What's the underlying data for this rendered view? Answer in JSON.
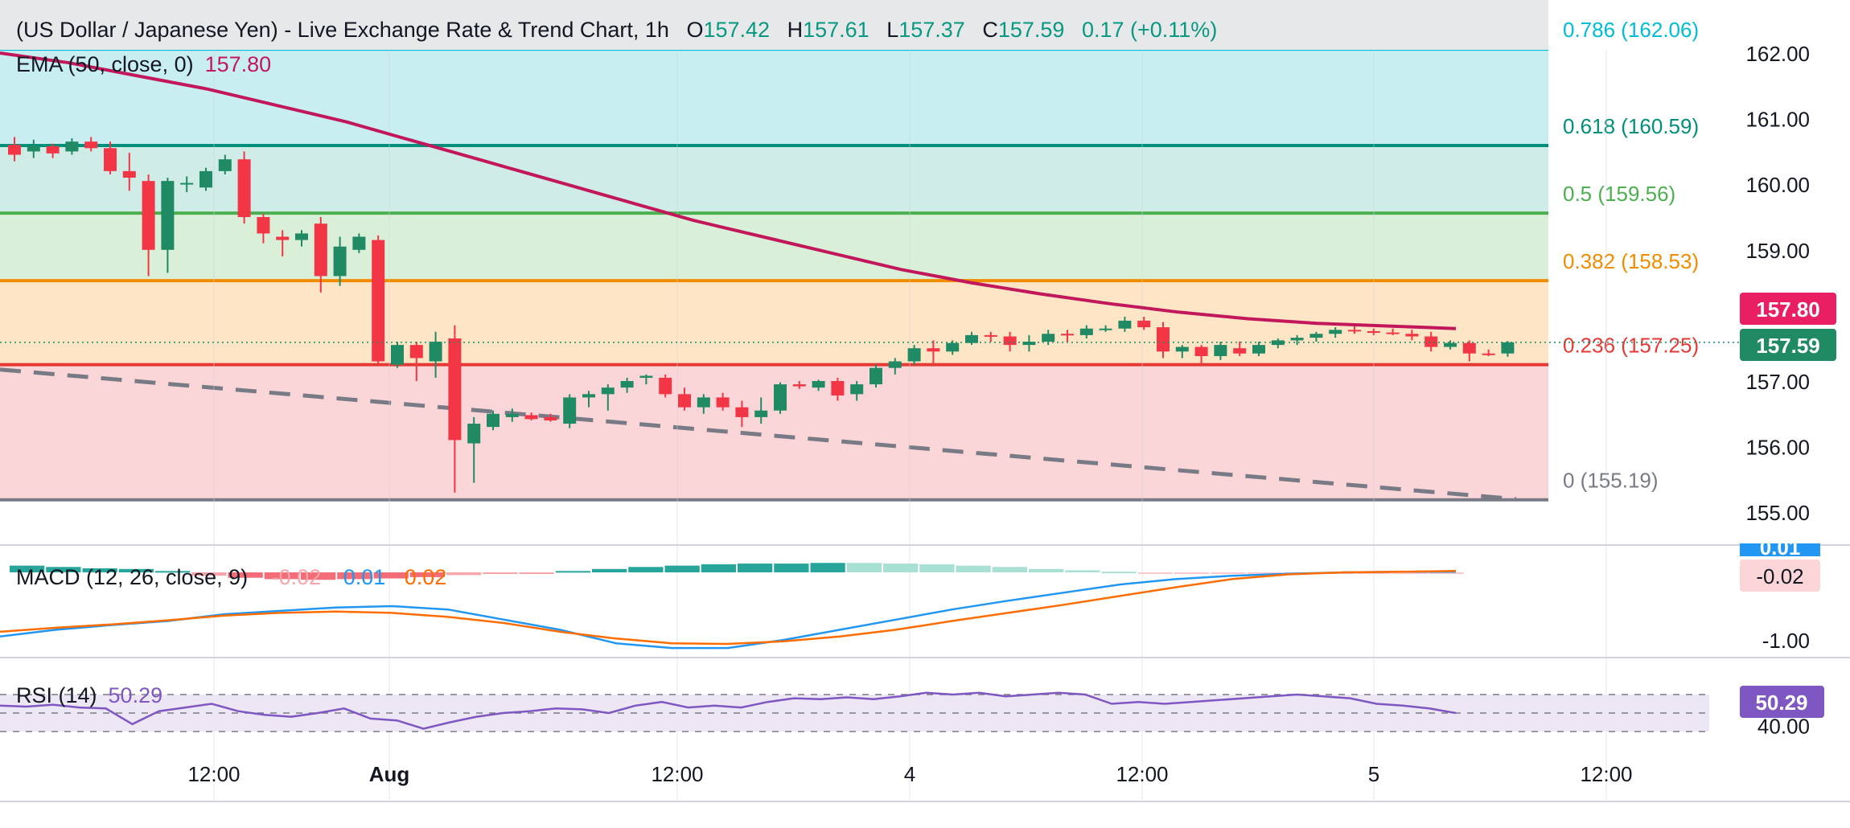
{
  "header": {
    "title": "(US Dollar / Japanese Yen) - Live Exchange Rate & Trend Chart, 1h",
    "o_label": "O",
    "o_value": "157.42",
    "h_label": "H",
    "h_value": "157.61",
    "l_label": "L",
    "l_value": "157.37",
    "c_label": "C",
    "c_value": "157.59",
    "change": "0.17 (+0.11%)"
  },
  "ema": {
    "label": "EMA (50, close, 0)",
    "value": "157.80"
  },
  "price_tags": {
    "ema": "157.80",
    "close": "157.59"
  },
  "fib_levels": [
    {
      "ratio": 0.786,
      "label": "0.786 (162.06)",
      "price": 162.06,
      "color": "#00bcd4",
      "fill": "#c8eef2"
    },
    {
      "ratio": 0.618,
      "label": "0.618 (160.59)",
      "price": 160.59,
      "color": "#008f7a",
      "fill": "#cfece6"
    },
    {
      "ratio": 0.5,
      "label": "0.5 (159.56)",
      "price": 159.56,
      "color": "#4caf50",
      "fill": "#d9efd7"
    },
    {
      "ratio": 0.382,
      "label": "0.382 (158.53)",
      "price": 158.53,
      "color": "#f08c00",
      "fill": "#fde5c6"
    },
    {
      "ratio": 0.236,
      "label": "0.236 (157.25)",
      "price": 157.25,
      "color": "#e53935",
      "fill": "#fbd6d8"
    },
    {
      "ratio": 0,
      "label": "0 (155.19)",
      "price": 155.19,
      "color": "#787b86",
      "fill": "#fbd6d8"
    }
  ],
  "macd": {
    "label": "MACD (12, 26, close, 9)",
    "hist": "-0.02",
    "macd": "0.01",
    "signal": "0.02",
    "tag_top": "0.01",
    "tag": "-0.02"
  },
  "rsi": {
    "label": "RSI (14)",
    "value": "50.29",
    "tag": "50.29"
  },
  "colors": {
    "up": "#26a69a",
    "up_body": "#1f8a63",
    "down": "#f23645",
    "ema": "#c2185b",
    "macd": "#2196f3",
    "signal": "#ff6d00",
    "rsi": "#7e57c2",
    "rsi_band": "#ece6f5",
    "trend": "#787b86"
  },
  "chart_data": [
    {
      "type": "candlestick",
      "title": "(US Dollar / Japanese Yen) - Live Exchange Rate & Trend Chart, 1h",
      "x_tick_labels": [
        "12:00",
        "Aug",
        "12:00",
        "4",
        "12:00",
        "5",
        "12:00"
      ],
      "y_ticks": [
        162.0,
        161.0,
        160.0,
        159.0,
        158.0,
        157.0,
        156.0,
        155.0
      ],
      "ylim": [
        154.8,
        162.6
      ],
      "ohlc": [
        [
          160.6,
          160.72,
          160.35,
          160.45
        ],
        [
          160.5,
          160.68,
          160.4,
          160.58
        ],
        [
          160.58,
          160.62,
          160.4,
          160.47
        ],
        [
          160.5,
          160.7,
          160.45,
          160.65
        ],
        [
          160.65,
          160.72,
          160.5,
          160.55
        ],
        [
          160.55,
          160.65,
          160.15,
          160.2
        ],
        [
          160.2,
          160.48,
          159.9,
          160.1
        ],
        [
          160.05,
          160.15,
          158.6,
          159.0
        ],
        [
          159.0,
          160.1,
          158.65,
          160.05
        ],
        [
          160.0,
          160.12,
          159.88,
          160.02
        ],
        [
          159.95,
          160.25,
          159.9,
          160.2
        ],
        [
          160.2,
          160.45,
          160.15,
          160.38
        ],
        [
          160.38,
          160.5,
          159.4,
          159.5
        ],
        [
          159.5,
          159.55,
          159.1,
          159.25
        ],
        [
          159.2,
          159.3,
          158.9,
          159.15
        ],
        [
          159.15,
          159.3,
          159.05,
          159.25
        ],
        [
          159.4,
          159.5,
          158.35,
          158.6
        ],
        [
          158.6,
          159.2,
          158.45,
          159.05
        ],
        [
          159.0,
          159.25,
          158.95,
          159.2
        ],
        [
          159.15,
          159.22,
          157.25,
          157.3
        ],
        [
          157.25,
          157.6,
          157.2,
          157.55
        ],
        [
          157.55,
          157.6,
          157.0,
          157.35
        ],
        [
          157.3,
          157.75,
          157.05,
          157.6
        ],
        [
          157.65,
          157.85,
          155.3,
          156.1
        ],
        [
          156.05,
          156.45,
          155.45,
          156.35
        ],
        [
          156.3,
          156.55,
          156.25,
          156.5
        ],
        [
          156.45,
          156.58,
          156.38,
          156.5
        ],
        [
          156.48,
          156.52,
          156.4,
          156.42
        ],
        [
          156.45,
          156.5,
          156.38,
          156.4
        ],
        [
          156.35,
          156.8,
          156.28,
          156.75
        ],
        [
          156.75,
          156.85,
          156.6,
          156.8
        ],
        [
          156.8,
          156.95,
          156.55,
          156.9
        ],
        [
          156.9,
          157.05,
          156.82,
          157.0
        ],
        [
          157.05,
          157.1,
          156.95,
          157.08
        ],
        [
          157.05,
          157.1,
          156.75,
          156.8
        ],
        [
          156.8,
          156.9,
          156.55,
          156.6
        ],
        [
          156.6,
          156.8,
          156.5,
          156.75
        ],
        [
          156.75,
          156.82,
          156.55,
          156.6
        ],
        [
          156.6,
          156.7,
          156.3,
          156.45
        ],
        [
          156.45,
          156.75,
          156.35,
          156.55
        ],
        [
          156.55,
          156.98,
          156.5,
          156.95
        ],
        [
          156.95,
          157.0,
          156.88,
          156.92
        ],
        [
          156.9,
          157.02,
          156.85,
          157.0
        ],
        [
          157.0,
          157.05,
          156.7,
          156.78
        ],
        [
          156.8,
          157.0,
          156.7,
          156.95
        ],
        [
          156.95,
          157.25,
          156.9,
          157.2
        ],
        [
          157.2,
          157.35,
          157.1,
          157.3
        ],
        [
          157.3,
          157.55,
          157.25,
          157.5
        ],
        [
          157.5,
          157.62,
          157.25,
          157.45
        ],
        [
          157.45,
          157.62,
          157.4,
          157.58
        ],
        [
          157.58,
          157.75,
          157.55,
          157.7
        ],
        [
          157.7,
          157.75,
          157.6,
          157.68
        ],
        [
          157.68,
          157.75,
          157.45,
          157.55
        ],
        [
          157.55,
          157.7,
          157.45,
          157.6
        ],
        [
          157.6,
          157.78,
          157.55,
          157.72
        ],
        [
          157.72,
          157.78,
          157.6,
          157.7
        ],
        [
          157.7,
          157.85,
          157.65,
          157.8
        ],
        [
          157.8,
          157.85,
          157.75,
          157.8
        ],
        [
          157.8,
          157.98,
          157.75,
          157.92
        ],
        [
          157.92,
          157.98,
          157.78,
          157.82
        ],
        [
          157.82,
          157.9,
          157.35,
          157.45
        ],
        [
          157.45,
          157.55,
          157.35,
          157.52
        ],
        [
          157.52,
          157.55,
          157.25,
          157.38
        ],
        [
          157.38,
          157.6,
          157.32,
          157.55
        ],
        [
          157.5,
          157.6,
          157.38,
          157.42
        ],
        [
          157.42,
          157.6,
          157.38,
          157.55
        ],
        [
          157.55,
          157.65,
          157.5,
          157.62
        ],
        [
          157.62,
          157.7,
          157.55,
          157.66
        ],
        [
          157.66,
          157.75,
          157.6,
          157.72
        ],
        [
          157.72,
          157.82,
          157.66,
          157.78
        ],
        [
          157.78,
          157.85,
          157.72,
          157.76
        ],
        [
          157.76,
          157.8,
          157.7,
          157.74
        ],
        [
          157.74,
          157.8,
          157.7,
          157.72
        ],
        [
          157.72,
          157.78,
          157.62,
          157.68
        ],
        [
          157.68,
          157.75,
          157.45,
          157.52
        ],
        [
          157.52,
          157.62,
          157.48,
          157.58
        ],
        [
          157.58,
          157.62,
          157.3,
          157.42
        ],
        [
          157.42,
          157.48,
          157.38,
          157.4
        ],
        [
          157.42,
          157.61,
          157.37,
          157.59
        ]
      ],
      "ema_50": [
        162.0,
        161.85,
        161.65,
        161.45,
        161.2,
        160.95,
        160.65,
        160.35,
        160.05,
        159.75,
        159.45,
        159.2,
        158.95,
        158.7,
        158.5,
        158.33,
        158.18,
        158.05,
        157.95,
        157.88,
        157.84,
        157.8
      ],
      "fib_ratios": [
        0.786,
        0.618,
        0.5,
        0.382,
        0.236,
        0
      ],
      "fib_prices": [
        162.06,
        160.59,
        159.56,
        158.53,
        157.25,
        155.19
      ],
      "trendline": [
        [
          0,
          157.2
        ],
        [
          78,
          155.2
        ]
      ]
    },
    {
      "type": "line",
      "title": "MACD (12, 26, close, 9)",
      "y_ticks": [
        -1.0
      ],
      "ylim": [
        -1.3,
        0.18
      ],
      "series": [
        {
          "name": "MACD",
          "values": [
            -0.95,
            -0.85,
            -0.78,
            -0.72,
            -0.62,
            -0.57,
            -0.52,
            -0.5,
            -0.55,
            -0.7,
            -0.85,
            -1.05,
            -1.12,
            -1.12,
            -1.0,
            -0.85,
            -0.7,
            -0.55,
            -0.42,
            -0.3,
            -0.18,
            -0.1,
            -0.05,
            -0.02,
            0.0,
            0.01,
            0.01
          ]
        },
        {
          "name": "Signal",
          "values": [
            -0.88,
            -0.82,
            -0.77,
            -0.71,
            -0.64,
            -0.6,
            -0.58,
            -0.6,
            -0.66,
            -0.75,
            -0.88,
            -0.98,
            -1.05,
            -1.06,
            -1.02,
            -0.95,
            -0.85,
            -0.72,
            -0.6,
            -0.48,
            -0.35,
            -0.22,
            -0.1,
            -0.03,
            0.0,
            0.01,
            0.02
          ]
        }
      ],
      "histogram": [
        0.1,
        0.08,
        0.06,
        0.05,
        0.02,
        -0.05,
        -0.08,
        -0.1,
        -0.11,
        -0.1,
        -0.09,
        -0.07,
        -0.04,
        -0.02,
        -0.01,
        0.02,
        0.05,
        0.08,
        0.1,
        0.12,
        0.13,
        0.13,
        0.14,
        0.14,
        0.13,
        0.12,
        0.1,
        0.08,
        0.05,
        0.03,
        0.01,
        -0.005,
        -0.005,
        -0.01,
        -0.01,
        -0.01,
        -0.01,
        -0.02,
        -0.02,
        -0.02
      ]
    },
    {
      "type": "line",
      "title": "RSI (14)",
      "y_ticks": [
        40.0
      ],
      "ylim": [
        34,
        78
      ],
      "bands": [
        70,
        50,
        30
      ],
      "series": [
        {
          "name": "RSI",
          "values": [
            58,
            57,
            59,
            56,
            55,
            38,
            52,
            56,
            60,
            52,
            48,
            46,
            50,
            55,
            44,
            42,
            33,
            40,
            46,
            50,
            52,
            55,
            54,
            50,
            58,
            62,
            56,
            58,
            56,
            62,
            66,
            65,
            67,
            65,
            68,
            72,
            70,
            72,
            68,
            70,
            72,
            70,
            60,
            62,
            60,
            62,
            64,
            66,
            68,
            70,
            68,
            66,
            60,
            58,
            55,
            50
          ]
        }
      ]
    }
  ]
}
